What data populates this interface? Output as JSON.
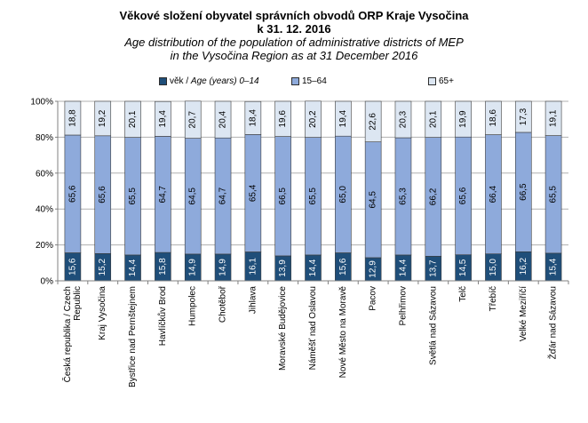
{
  "title": {
    "line1": "Věkové složení obyvatel správních obvodů ORP Kraje Vysočina",
    "line2": "k 31. 12. 2016",
    "line3": "Age distribution of the population of administrative districts of MEP",
    "line4": "in the Vysočina Region as at 31 December 2016"
  },
  "legend": {
    "item1_cz": "věk / ",
    "item1_en": "Age (years) 0–14",
    "item2": "15–64",
    "item3": "65+"
  },
  "colors": {
    "s1": "#1f4e79",
    "s2": "#8eaadb",
    "s3": "#dce6f2",
    "grid": "#b0b0b0",
    "axis": "#808080",
    "label_light": "#ffffff",
    "label_dark": "#000000"
  },
  "chart_data": {
    "type": "bar",
    "stacked": true,
    "percent": true,
    "categories": [
      "Česká republika / Czech Republic",
      "Kraj Vysočina",
      "Bystřice nad Pernštejnem",
      "Havlíčkův Brod",
      "Humpolec",
      "Chotěboř",
      "Jihlava",
      "Moravské Budějovice",
      "Náměšť nad Oslavou",
      "Nové Město na Moravě",
      "Pacov",
      "Pelhřimov",
      "Světlá nad Sázavou",
      "Telč",
      "Třebíč",
      "Velké Meziříčí",
      "Žďár nad Sázavou"
    ],
    "series": [
      {
        "name": "0–14",
        "values": [
          15.6,
          15.2,
          14.4,
          15.8,
          14.9,
          14.9,
          16.1,
          13.9,
          14.4,
          15.6,
          12.9,
          14.4,
          13.7,
          14.5,
          15.0,
          16.2,
          15.4
        ],
        "labels": [
          "15,6",
          "15,2",
          "14,4",
          "15,8",
          "14,9",
          "14,9",
          "16,1",
          "13,9",
          "14,4",
          "15,6",
          "12,9",
          "14,4",
          "13,7",
          "14,5",
          "15,0",
          "16,2",
          "15,4"
        ]
      },
      {
        "name": "15–64",
        "values": [
          65.6,
          65.6,
          65.5,
          64.7,
          64.5,
          64.7,
          65.4,
          66.5,
          65.5,
          65.0,
          64.5,
          65.3,
          66.2,
          65.6,
          66.4,
          66.5,
          65.5
        ],
        "labels": [
          "65,6",
          "65,6",
          "65,5",
          "64,7",
          "64,5",
          "64,7",
          "65,4",
          "66,5",
          "65,5",
          "65,0",
          "64,5",
          "65,3",
          "66,2",
          "65,6",
          "66,4",
          "66,5",
          "65,5"
        ]
      },
      {
        "name": "65+",
        "values": [
          18.8,
          19.2,
          20.1,
          19.4,
          20.7,
          20.4,
          18.4,
          19.6,
          20.2,
          19.4,
          22.6,
          20.3,
          20.1,
          19.9,
          18.6,
          17.3,
          19.1
        ],
        "labels": [
          "18,8",
          "19,2",
          "20,1",
          "19,4",
          "20,7",
          "20,4",
          "18,4",
          "19,6",
          "20,2",
          "19,4",
          "22,6",
          "20,3",
          "20,1",
          "19,9",
          "18,6",
          "17,3",
          "19,1"
        ]
      }
    ],
    "category_labels": [
      [
        "Česká republika / Czech",
        "Republic"
      ],
      [
        "Kraj Vysočina"
      ],
      [
        "Bystřice nad Pernštejnem"
      ],
      [
        "Havlíčkův Brod"
      ],
      [
        "Humpolec"
      ],
      [
        "Chotěboř"
      ],
      [
        "Jihlava"
      ],
      [
        "Moravské Budějovice"
      ],
      [
        "Náměšť nad Oslavou"
      ],
      [
        "Nové Město na Moravě"
      ],
      [
        "Pacov"
      ],
      [
        "Pelhřimov"
      ],
      [
        "Světlá nad Sázavou"
      ],
      [
        "Telč"
      ],
      [
        "Třebíč"
      ],
      [
        "Velké Meziříčí"
      ],
      [
        "Žďár nad Sázavou"
      ]
    ],
    "y_ticks": [
      0,
      20,
      40,
      60,
      80,
      100
    ],
    "y_tick_labels": [
      "0%",
      "20%",
      "40%",
      "60%",
      "80%",
      "100%"
    ],
    "ylim": [
      0,
      100
    ],
    "grid": true,
    "legend_position": "top"
  }
}
